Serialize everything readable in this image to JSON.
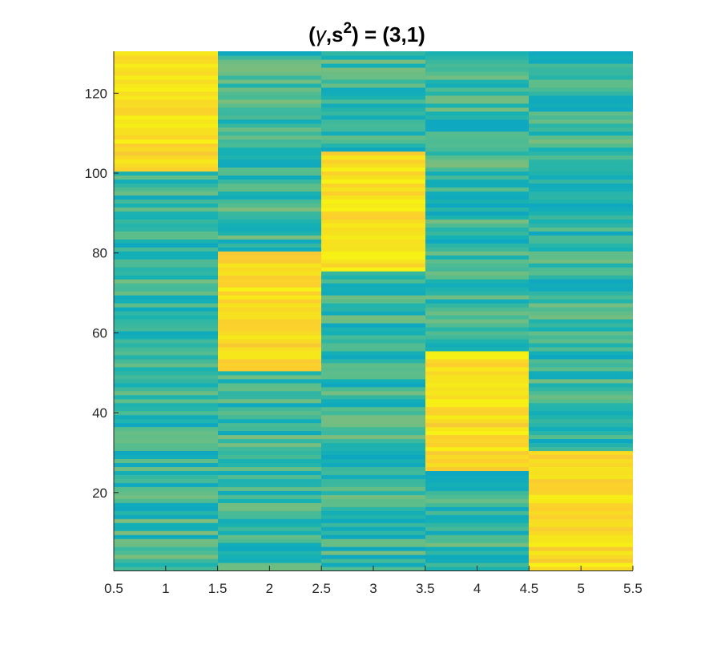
{
  "chart_data": {
    "type": "heatmap",
    "title": {
      "prefix": "(",
      "symbol": "γ",
      "middle": ",s",
      "sup": "2",
      "suffix": ") = (3,1)"
    },
    "xlabel": "",
    "ylabel": "",
    "xlim": [
      0.5,
      5.5
    ],
    "ylim": [
      0.5,
      130.5
    ],
    "x_ticks": [
      0.5,
      1,
      1.5,
      2,
      2.5,
      3,
      3.5,
      4,
      4.5,
      5,
      5.5
    ],
    "x_tick_labels": [
      "0.5",
      "1",
      "1.5",
      "2",
      "2.5",
      "3",
      "3.5",
      "4",
      "4.5",
      "5",
      "5.5"
    ],
    "y_ticks": [
      20,
      40,
      60,
      80,
      100,
      120
    ],
    "y_tick_labels": [
      "20",
      "40",
      "60",
      "80",
      "100",
      "120"
    ],
    "y_direction": "normal",
    "grid": false,
    "columns": 5,
    "rows": 130,
    "colormap": "parula",
    "color_range": [
      0,
      1
    ],
    "high_blocks": [
      {
        "column": 1,
        "row_start": 101,
        "row_end": 130
      },
      {
        "column": 2,
        "row_start": 51,
        "row_end": 80
      },
      {
        "column": 3,
        "row_start": 76,
        "row_end": 105
      },
      {
        "column": 4,
        "row_start": 26,
        "row_end": 55
      },
      {
        "column": 5,
        "row_start": 1,
        "row_end": 30
      }
    ],
    "background_value_range": [
      0.35,
      0.55
    ],
    "block_value_range": [
      0.78,
      0.96
    ]
  }
}
